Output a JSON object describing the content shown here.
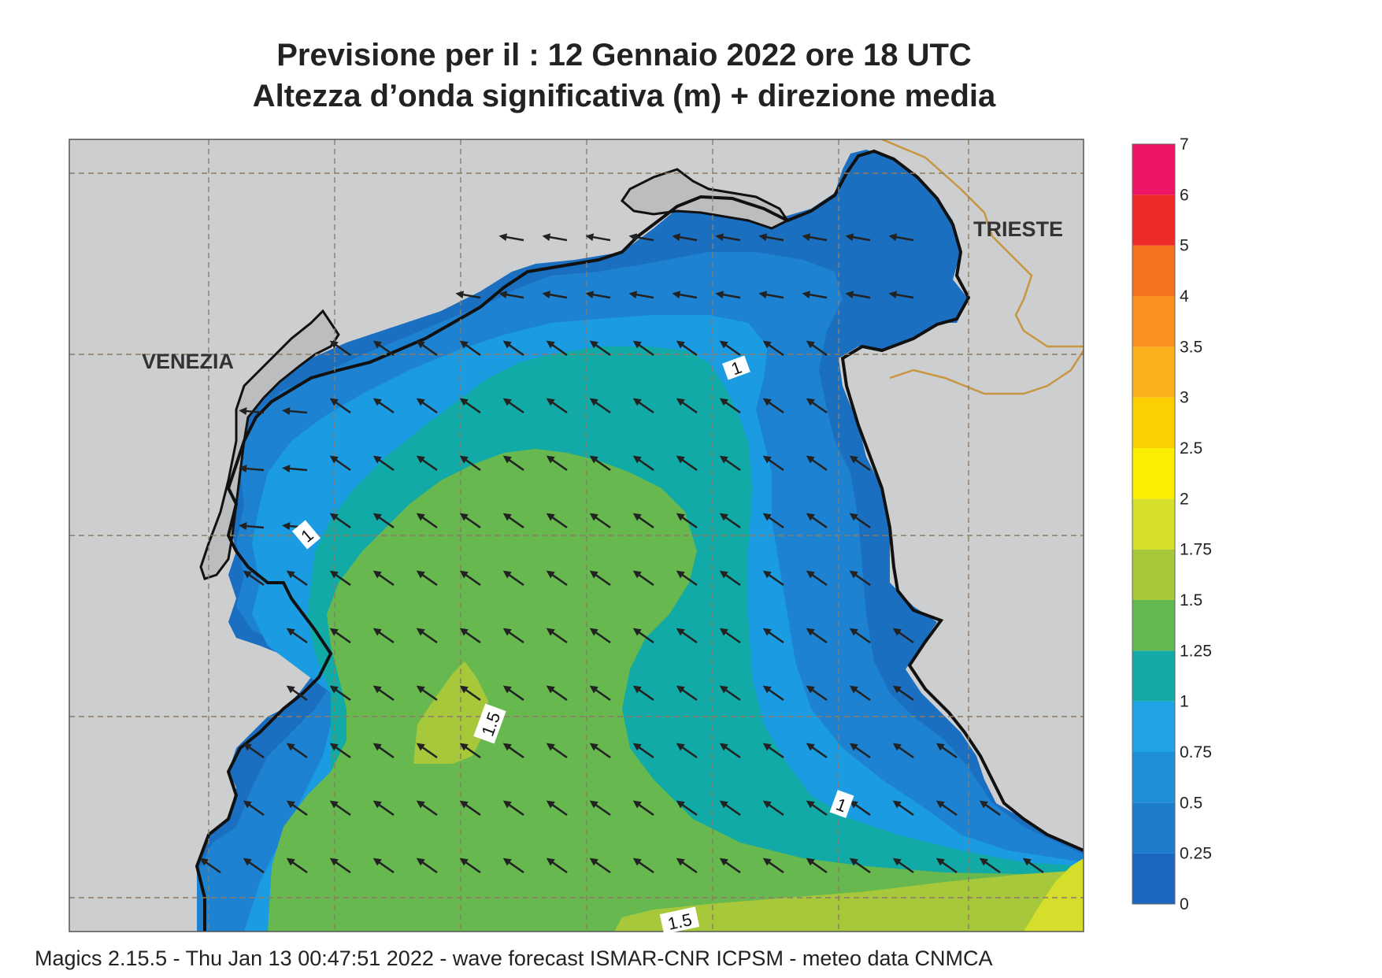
{
  "title": {
    "line1": "Previsione per il  :  12  Gennaio  2022   ore 18 UTC",
    "line2": "Altezza d’onda significativa (m) + direzione media"
  },
  "cities": [
    {
      "name": "VENEZIA"
    },
    {
      "name": "TRIESTE"
    }
  ],
  "contour_labels": [
    {
      "text": "1"
    },
    {
      "text": "1"
    },
    {
      "text": "1"
    },
    {
      "text": "1.5"
    },
    {
      "text": "1.5"
    }
  ],
  "colorbar": {
    "labels": [
      "0",
      "0.25",
      "0.5",
      "0.75",
      "1",
      "1.25",
      "1.5",
      "1.75",
      "2",
      "2.5",
      "3",
      "3.5",
      "4",
      "5",
      "6",
      "7"
    ],
    "colors": [
      "#1a66c0",
      "#1d7ccc",
      "#1f8fd8",
      "#1fa2e6",
      "#14aaa8",
      "#63b84f",
      "#a6c83a",
      "#d6e02a",
      "#fcee00",
      "#fcd000",
      "#fbb11c",
      "#f8911f",
      "#f4711f",
      "#ed2a29",
      "#ee1466"
    ]
  },
  "field_colors": {
    "land": "#cdcecf",
    "band_0_25": "#1a6fc0",
    "band_0_5": "#1d82d1",
    "band_0_75": "#1b9be2",
    "band_1": "#12aaa6",
    "band_1_25": "#66b84f",
    "band_1_5": "#a6c83a",
    "band_1_75": "#d5df2b",
    "border": "#c89640",
    "coast": "#111111"
  },
  "arrow_direction": "toward south-west (from north-east)",
  "footer": "Magics 2.15.5 - Thu Jan 13 00:47:51 2022 - wave forecast  ISMAR-CNR  ICPSM - meteo data   CNMCA"
}
